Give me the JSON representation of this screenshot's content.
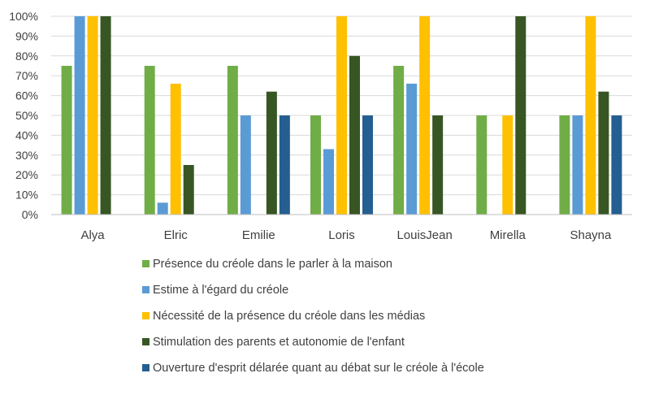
{
  "chart_data": {
    "type": "bar",
    "title": "",
    "xlabel": "",
    "ylabel": "",
    "categories": [
      "Alya",
      "Elric",
      "Emilie",
      "Loris",
      "LouisJean",
      "Mirella",
      "Shayna"
    ],
    "ylim": [
      0,
      100
    ],
    "yticks": [
      0,
      10,
      20,
      30,
      40,
      50,
      60,
      70,
      80,
      90,
      100
    ],
    "ytick_labels": [
      "0%",
      "10%",
      "20%",
      "30%",
      "40%",
      "50%",
      "60%",
      "70%",
      "80%",
      "90%",
      "100%"
    ],
    "grid": true,
    "legend_position": "bottom",
    "series": [
      {
        "name": "Présence du créole dans le parler à la maison",
        "color": "#70ad47",
        "values": [
          75,
          75,
          75,
          50,
          75,
          50,
          50
        ]
      },
      {
        "name": "Estime à l'égard du créole",
        "color": "#5b9bd5",
        "values": [
          100,
          6,
          50,
          33,
          66,
          null,
          50
        ]
      },
      {
        "name": "Nécessité de la présence du créole dans les médias",
        "color": "#ffc000",
        "values": [
          100,
          66,
          null,
          100,
          100,
          50,
          100
        ]
      },
      {
        "name": "Stimulation des parents et autonomie de l'enfant",
        "color": "#375623",
        "values": [
          100,
          25,
          62,
          80,
          50,
          100,
          62
        ]
      },
      {
        "name": "Ouverture d'esprit délarée quant au débat sur le créole à l'école",
        "color": "#255e91",
        "values": [
          null,
          null,
          50,
          50,
          null,
          null,
          50
        ]
      }
    ]
  }
}
